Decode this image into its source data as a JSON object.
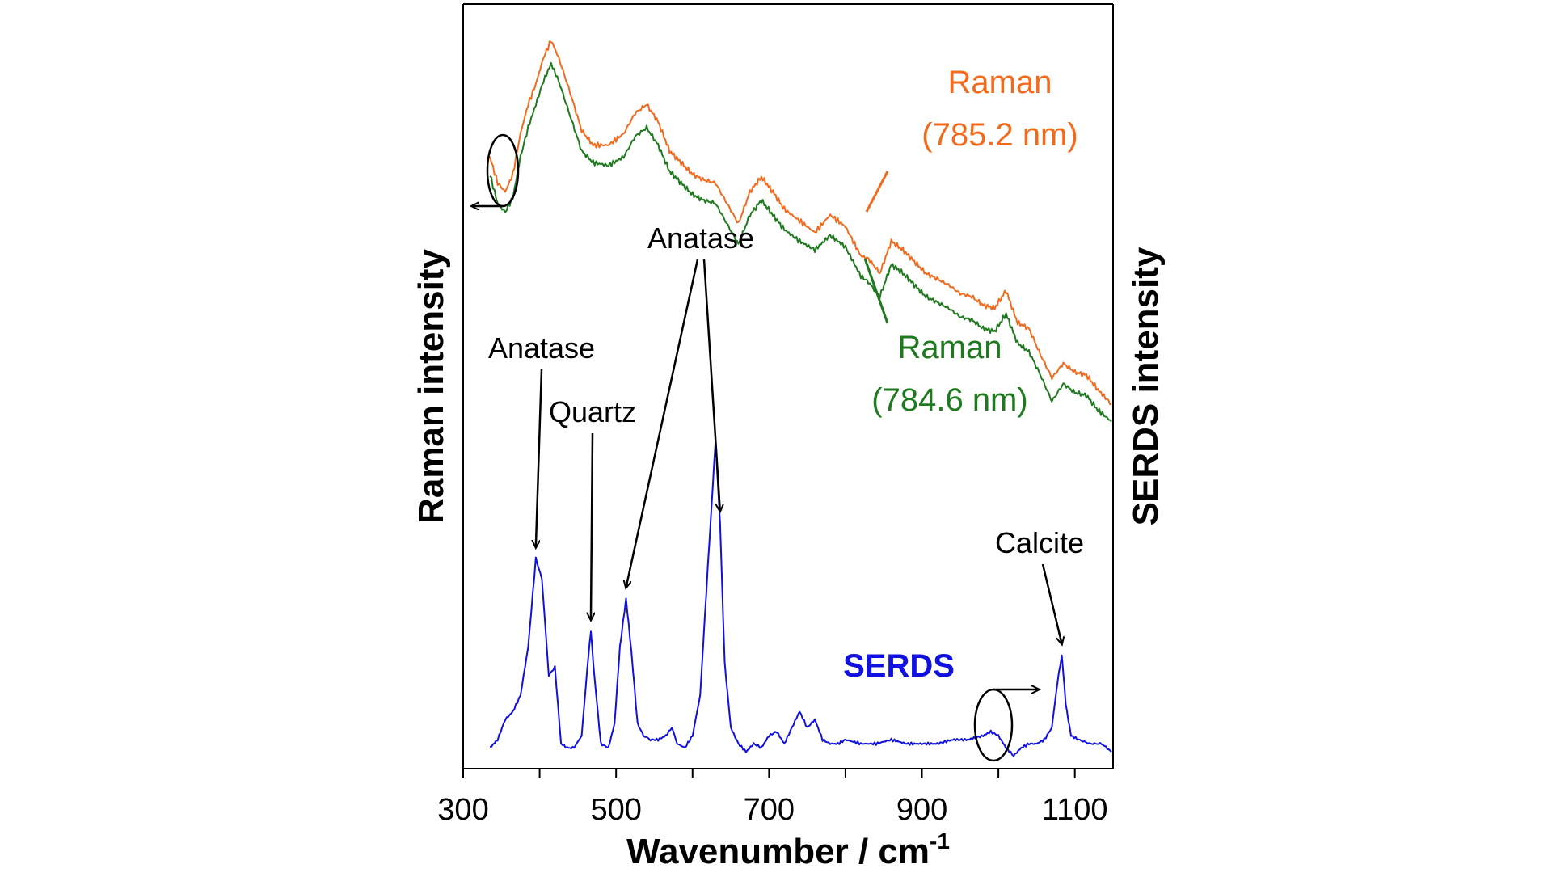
{
  "chart_data": {
    "type": "line",
    "xlabel": "Wavenumber / cm",
    "xlabel_sup": "-1",
    "ylabel_left": "Raman intensity",
    "ylabel_right": "SERDS intensity",
    "xlim": [
      300,
      1150
    ],
    "xticks": [
      300,
      500,
      700,
      900,
      1100
    ],
    "grid": false,
    "colors": {
      "raman_785_2": "#f26b1d",
      "raman_784_6": "#1f7a1f",
      "serds": "#1010e0",
      "annotation": "#000000"
    },
    "series": [
      {
        "name": "Raman (785.2 nm)",
        "label_line1": "Raman",
        "label_line2": "(785.2 nm)",
        "axis": "left",
        "x": [
          335,
          345,
          355,
          365,
          375,
          385,
          395,
          405,
          415,
          425,
          440,
          455,
          470,
          490,
          510,
          525,
          540,
          555,
          570,
          585,
          600,
          615,
          630,
          645,
          660,
          675,
          690,
          705,
          720,
          740,
          760,
          780,
          800,
          810,
          820,
          830,
          845,
          860,
          875,
          890,
          905,
          920,
          935,
          950,
          965,
          980,
          995,
          1010,
          1025,
          1040,
          1055,
          1070,
          1085,
          1100,
          1115,
          1130,
          1148
        ],
        "values": [
          0.86,
          0.815,
          0.8,
          0.83,
          0.9,
          0.95,
          0.985,
          1.03,
          1.06,
          1.03,
          0.97,
          0.905,
          0.88,
          0.88,
          0.9,
          0.935,
          0.95,
          0.92,
          0.87,
          0.85,
          0.83,
          0.82,
          0.815,
          0.78,
          0.745,
          0.8,
          0.825,
          0.8,
          0.77,
          0.75,
          0.73,
          0.76,
          0.74,
          0.715,
          0.69,
          0.685,
          0.66,
          0.715,
          0.7,
          0.68,
          0.66,
          0.65,
          0.64,
          0.625,
          0.62,
          0.605,
          0.6,
          0.63,
          0.575,
          0.565,
          0.52,
          0.48,
          0.505,
          0.49,
          0.485,
          0.46,
          0.435
        ]
      },
      {
        "name": "Raman (784.6 nm)",
        "label_line1": "Raman",
        "label_line2": "(784.6 nm)",
        "axis": "left",
        "x": [
          335,
          345,
          355,
          365,
          375,
          385,
          395,
          405,
          415,
          425,
          440,
          455,
          470,
          490,
          510,
          525,
          540,
          555,
          570,
          585,
          600,
          615,
          630,
          645,
          660,
          675,
          690,
          705,
          720,
          740,
          760,
          780,
          800,
          810,
          820,
          830,
          845,
          860,
          875,
          890,
          905,
          920,
          935,
          950,
          965,
          980,
          995,
          1010,
          1025,
          1040,
          1055,
          1070,
          1085,
          1100,
          1115,
          1130,
          1148
        ],
        "values": [
          0.83,
          0.78,
          0.765,
          0.79,
          0.86,
          0.91,
          0.95,
          0.99,
          1.02,
          0.99,
          0.93,
          0.87,
          0.85,
          0.845,
          0.86,
          0.895,
          0.91,
          0.88,
          0.835,
          0.815,
          0.795,
          0.785,
          0.78,
          0.745,
          0.71,
          0.76,
          0.785,
          0.76,
          0.735,
          0.715,
          0.7,
          0.725,
          0.705,
          0.68,
          0.655,
          0.645,
          0.62,
          0.675,
          0.66,
          0.64,
          0.62,
          0.61,
          0.6,
          0.585,
          0.58,
          0.565,
          0.56,
          0.59,
          0.54,
          0.525,
          0.485,
          0.44,
          0.47,
          0.455,
          0.45,
          0.425,
          0.405
        ]
      },
      {
        "name": "SERDS",
        "label": "SERDS",
        "axis": "right",
        "x": [
          335,
          345,
          355,
          365,
          375,
          385,
          395,
          403,
          412,
          420,
          428,
          436,
          445,
          455,
          462,
          467,
          472,
          480,
          490,
          498,
          505,
          513,
          520,
          528,
          536,
          545,
          555,
          565,
          573,
          580,
          590,
          600,
          610,
          620,
          630,
          636,
          642,
          650,
          660,
          670,
          680,
          690,
          700,
          710,
          720,
          730,
          740,
          750,
          760,
          770,
          780,
          790,
          800,
          820,
          840,
          860,
          880,
          900,
          920,
          940,
          960,
          980,
          990,
          1000,
          1010,
          1020,
          1030,
          1040,
          1050,
          1060,
          1070,
          1077,
          1083,
          1088,
          1095,
          1105,
          1120,
          1135,
          1148
        ],
        "values": [
          0.05,
          0.07,
          0.12,
          0.14,
          0.18,
          0.3,
          0.52,
          0.47,
          0.23,
          0.25,
          0.06,
          0.05,
          0.05,
          0.08,
          0.24,
          0.34,
          0.22,
          0.06,
          0.05,
          0.11,
          0.3,
          0.42,
          0.29,
          0.11,
          0.08,
          0.07,
          0.07,
          0.08,
          0.1,
          0.06,
          0.05,
          0.08,
          0.18,
          0.5,
          0.81,
          0.61,
          0.26,
          0.1,
          0.06,
          0.04,
          0.06,
          0.05,
          0.08,
          0.09,
          0.06,
          0.1,
          0.14,
          0.1,
          0.12,
          0.07,
          0.06,
          0.06,
          0.07,
          0.06,
          0.06,
          0.07,
          0.06,
          0.06,
          0.06,
          0.07,
          0.07,
          0.08,
          0.09,
          0.08,
          0.05,
          0.03,
          0.05,
          0.06,
          0.06,
          0.07,
          0.1,
          0.21,
          0.28,
          0.16,
          0.08,
          0.07,
          0.06,
          0.06,
          0.04
        ]
      }
    ],
    "annotations": [
      {
        "text": "Anatase",
        "x": 395,
        "series": "SERDS"
      },
      {
        "text": "Quartz",
        "x": 467,
        "series": "SERDS"
      },
      {
        "text": "Anatase",
        "x": 513,
        "series": "SERDS"
      },
      {
        "text": "Anatase",
        "x": 636,
        "series": "SERDS"
      },
      {
        "text": "Calcite",
        "x": 1083,
        "series": "SERDS"
      }
    ]
  }
}
